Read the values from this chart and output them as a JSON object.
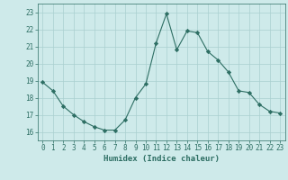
{
  "x": [
    0,
    1,
    2,
    3,
    4,
    5,
    6,
    7,
    8,
    9,
    10,
    11,
    12,
    13,
    14,
    15,
    16,
    17,
    18,
    19,
    20,
    21,
    22,
    23
  ],
  "y": [
    18.9,
    18.4,
    17.5,
    17.0,
    16.6,
    16.3,
    16.1,
    16.1,
    16.7,
    18.0,
    18.8,
    21.2,
    22.9,
    20.8,
    21.9,
    21.8,
    20.7,
    20.2,
    19.5,
    18.4,
    18.3,
    17.6,
    17.2,
    17.1
  ],
  "line_color": "#2d6e63",
  "marker": "D",
  "marker_size": 2.2,
  "bg_color": "#ceeaea",
  "grid_color": "#aacfcf",
  "xlabel": "Humidex (Indice chaleur)",
  "ylim": [
    15.5,
    23.5
  ],
  "xlim": [
    -0.5,
    23.5
  ],
  "yticks": [
    16,
    17,
    18,
    19,
    20,
    21,
    22,
    23
  ],
  "xticks": [
    0,
    1,
    2,
    3,
    4,
    5,
    6,
    7,
    8,
    9,
    10,
    11,
    12,
    13,
    14,
    15,
    16,
    17,
    18,
    19,
    20,
    21,
    22,
    23
  ],
  "tick_color": "#2d6e63",
  "label_fontsize": 5.5,
  "axis_fontsize": 6.5
}
